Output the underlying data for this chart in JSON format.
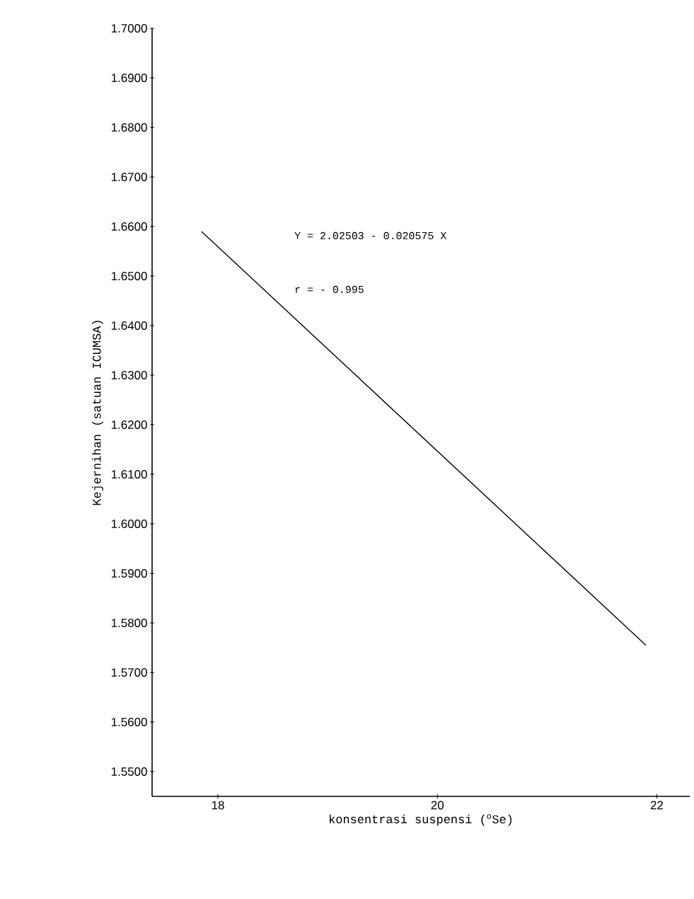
{
  "chart_data": {
    "type": "line",
    "xlabel": "konsentrasi suspensi ($^{o}$Se)",
    "ylabel": "Kejernihan (satuan ICUMSA)",
    "x": [
      17.85,
      21.9
    ],
    "values": [
      1.659,
      1.5755
    ],
    "color": "#000000",
    "marker": "none",
    "line_style": "solid",
    "xlim": [
      17.4,
      22.3
    ],
    "ylim": [
      1.545,
      1.7
    ],
    "xticks": [
      18,
      20,
      22
    ],
    "yticks": [
      {
        "value": 1.55,
        "label": "1.5500"
      },
      {
        "value": 1.56,
        "label": "1.5600"
      },
      {
        "value": 1.57,
        "label": "1.5700"
      },
      {
        "value": 1.58,
        "label": "1.5800"
      },
      {
        "value": 1.59,
        "label": "1.5900"
      },
      {
        "value": 1.6,
        "label": "1.6000"
      },
      {
        "value": 1.61,
        "label": "1.6100"
      },
      {
        "value": 1.62,
        "label": "1.6200"
      },
      {
        "value": 1.63,
        "label": "1.6300"
      },
      {
        "value": 1.64,
        "label": "1.6400"
      },
      {
        "value": 1.65,
        "label": "1.6500"
      },
      {
        "value": 1.66,
        "label": "1.6600"
      },
      {
        "value": 1.67,
        "label": "1.6700"
      },
      {
        "value": 1.68,
        "label": "1.6800"
      },
      {
        "value": 1.69,
        "label": "1.6900"
      },
      {
        "value": 1.7,
        "label": "1.7000"
      }
    ],
    "annotations": [
      "Y = 2.02503 - 0.020575 X",
      "r = - 0.995"
    ],
    "grid": false
  }
}
